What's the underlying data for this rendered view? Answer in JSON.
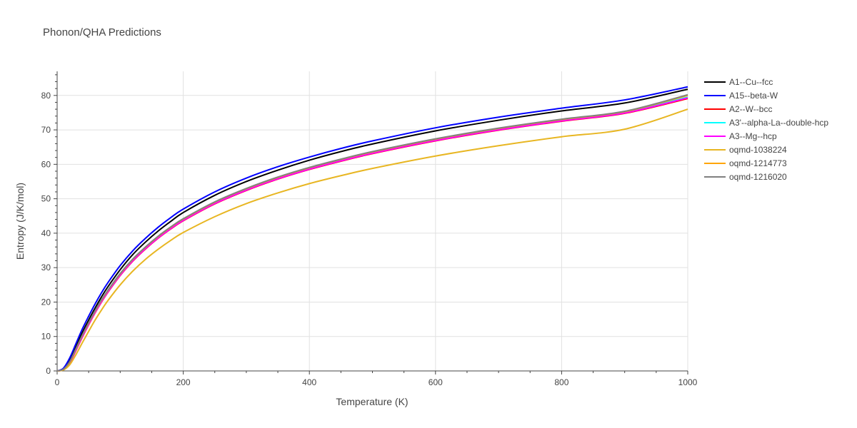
{
  "chart_data": {
    "type": "line",
    "title": "Phonon/QHA Predictions",
    "xlabel": "Temperature (K)",
    "ylabel": "Entropy (J/K/mol)",
    "xlim": [
      0,
      1000
    ],
    "ylim": [
      0,
      87
    ],
    "xticks": [
      0,
      200,
      400,
      600,
      800,
      1000
    ],
    "yticks": [
      0,
      10,
      20,
      30,
      40,
      50,
      60,
      70,
      80
    ],
    "grid": true,
    "legend_position": "right",
    "x": [
      0,
      10,
      20,
      30,
      40,
      50,
      60,
      70,
      80,
      100,
      120,
      140,
      160,
      180,
      200,
      250,
      300,
      350,
      400,
      450,
      500,
      600,
      700,
      800,
      900,
      1000
    ],
    "series": [
      {
        "name": "A1--Cu--fcc",
        "color": "#000000",
        "width": 2,
        "values": [
          0,
          0.6,
          3.2,
          7.2,
          11.2,
          14.8,
          18.2,
          21.4,
          24.3,
          29.4,
          33.8,
          37.4,
          40.6,
          43.4,
          46.0,
          51.0,
          55.0,
          58.3,
          61.2,
          63.7,
          65.9,
          69.7,
          72.8,
          75.5,
          77.8,
          81.8
        ]
      },
      {
        "name": "A15--beta-W",
        "color": "#0000ff",
        "width": 2,
        "values": [
          0,
          0.8,
          3.8,
          8.0,
          12.2,
          15.9,
          19.4,
          22.6,
          25.5,
          30.6,
          34.9,
          38.5,
          41.7,
          44.5,
          47.0,
          52.0,
          56.0,
          59.3,
          62.1,
          64.6,
          66.8,
          70.6,
          73.7,
          76.3,
          78.7,
          82.5
        ]
      },
      {
        "name": "A2--W--bcc",
        "color": "#ff0000",
        "width": 2,
        "values": [
          0,
          0.4,
          2.4,
          6.0,
          9.8,
          13.4,
          16.8,
          19.9,
          22.7,
          27.7,
          31.9,
          35.4,
          38.5,
          41.2,
          43.6,
          48.5,
          52.4,
          55.7,
          58.5,
          60.9,
          63.1,
          66.8,
          69.9,
          72.5,
          74.8,
          79.1
        ]
      },
      {
        "name": "A3'--alpha-La--double-hcp",
        "color": "#00ffff",
        "width": 2,
        "values": [
          0,
          0.45,
          2.6,
          6.3,
          10.2,
          13.8,
          17.2,
          20.3,
          23.1,
          28.1,
          32.3,
          35.8,
          38.9,
          41.6,
          44.0,
          48.9,
          52.8,
          56.1,
          58.9,
          61.3,
          63.5,
          67.2,
          70.3,
          72.9,
          75.2,
          79.5
        ]
      },
      {
        "name": "A3--Mg--hcp",
        "color": "#ff00ff",
        "width": 2,
        "values": [
          0,
          0.4,
          2.5,
          6.1,
          9.9,
          13.5,
          16.9,
          20.0,
          22.8,
          27.8,
          32.0,
          35.5,
          38.6,
          41.3,
          43.7,
          48.6,
          52.5,
          55.8,
          58.6,
          61.0,
          63.2,
          66.9,
          70.0,
          72.6,
          74.9,
          79.3
        ]
      },
      {
        "name": "oqmd-1038224",
        "color": "#e8b622",
        "width": 2,
        "values": [
          0,
          0.3,
          1.8,
          4.8,
          8.2,
          11.5,
          14.7,
          17.6,
          20.3,
          25.0,
          29.0,
          32.4,
          35.3,
          37.9,
          40.2,
          44.8,
          48.6,
          51.7,
          54.4,
          56.7,
          58.8,
          62.4,
          65.4,
          68.0,
          70.2,
          76.0
        ]
      },
      {
        "name": "oqmd-1214773",
        "color": "#ffa500",
        "width": 2,
        "values": [
          0,
          0.45,
          2.6,
          6.4,
          10.3,
          13.9,
          17.3,
          20.4,
          23.2,
          28.2,
          32.4,
          35.9,
          39.0,
          41.7,
          44.1,
          49.0,
          52.9,
          56.2,
          59.0,
          61.4,
          63.6,
          67.3,
          70.4,
          73.0,
          75.3,
          80.0
        ]
      },
      {
        "name": "oqmd-1216020",
        "color": "#808080",
        "width": 2,
        "values": [
          0,
          0.5,
          2.7,
          6.5,
          10.4,
          14.0,
          17.4,
          20.5,
          23.3,
          28.3,
          32.5,
          36.0,
          39.1,
          41.8,
          44.2,
          49.1,
          53.0,
          56.3,
          59.1,
          61.5,
          63.7,
          67.4,
          70.5,
          73.1,
          75.4,
          80.2
        ]
      }
    ]
  }
}
